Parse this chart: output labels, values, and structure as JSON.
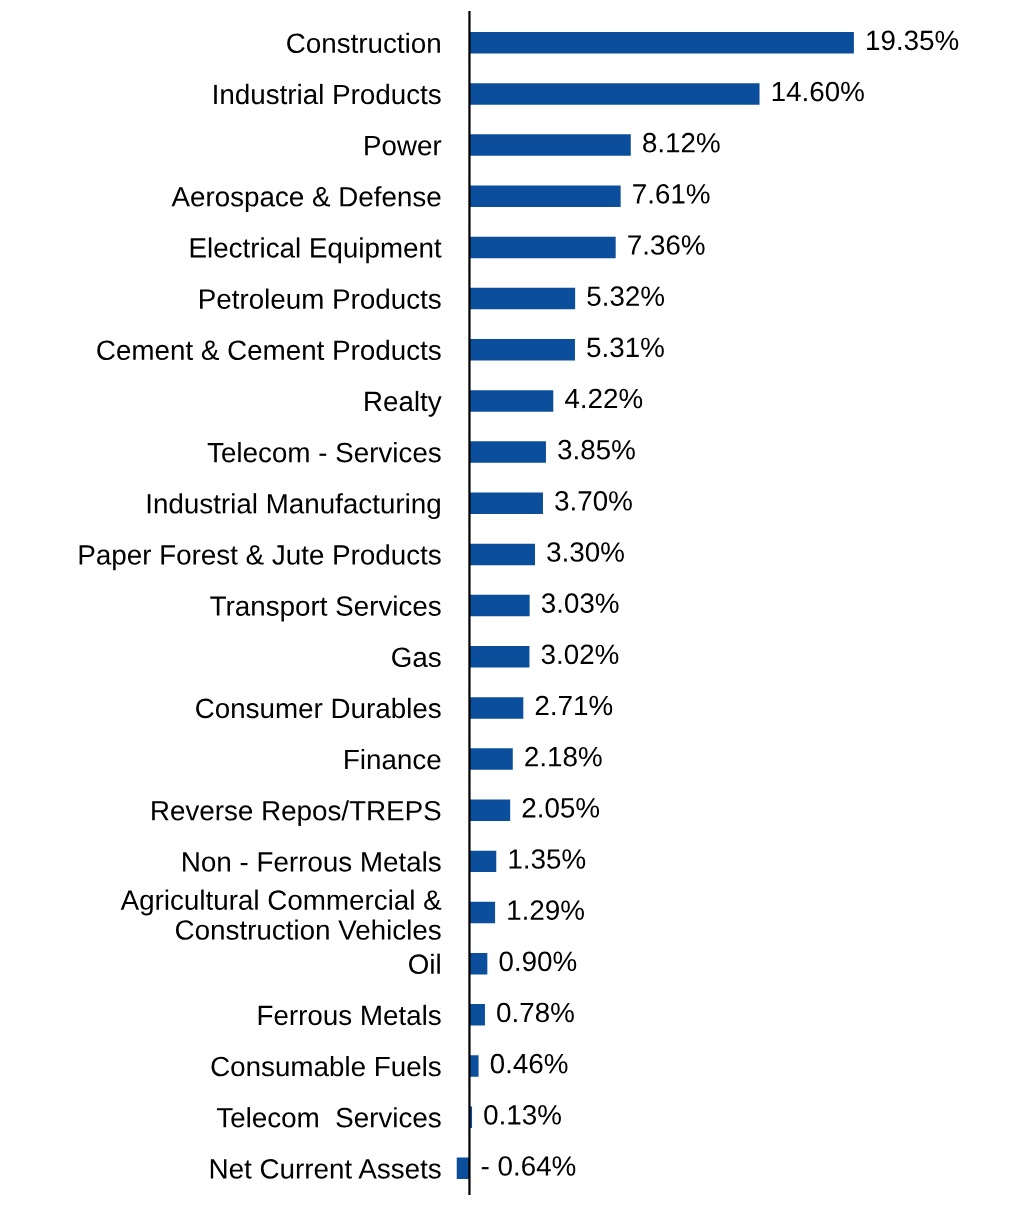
{
  "chart_data": {
    "type": "bar",
    "orientation": "horizontal",
    "color": "#0b4e9b",
    "categories": [
      "Construction",
      "Industrial Products",
      "Power",
      "Aerospace & Defense",
      "Electrical Equipment",
      "Petroleum Products",
      "Cement & Cement Products",
      "Realty",
      "Telecom - Services",
      "Industrial Manufacturing",
      "Paper Forest & Jute Products",
      "Transport Services",
      "Gas",
      "Consumer Durables",
      "Finance",
      "Reverse Repos/TREPS",
      "Non - Ferrous Metals",
      "Agricultural Commercial &\nConstruction Vehicles",
      "Oil",
      "Ferrous Metals",
      "Consumable Fuels",
      "Telecom  Services",
      "Net Current Assets"
    ],
    "values": [
      19.35,
      14.6,
      8.12,
      7.61,
      7.36,
      5.32,
      5.31,
      4.22,
      3.85,
      3.7,
      3.3,
      3.03,
      3.02,
      2.71,
      2.18,
      2.05,
      1.35,
      1.29,
      0.9,
      0.78,
      0.46,
      0.13,
      -0.64
    ],
    "value_labels": [
      "19.35%",
      "14.60%",
      "8.12%",
      "7.61%",
      "7.36%",
      "5.32%",
      "5.31%",
      "4.22%",
      "3.85%",
      "3.70%",
      "3.30%",
      "3.03%",
      "3.02%",
      "2.71%",
      "2.18%",
      "2.05%",
      "1.35%",
      "1.29%",
      "0.90%",
      "0.78%",
      "0.46%",
      "0.13%",
      "- 0.64%"
    ],
    "grid": false,
    "legend": false
  }
}
